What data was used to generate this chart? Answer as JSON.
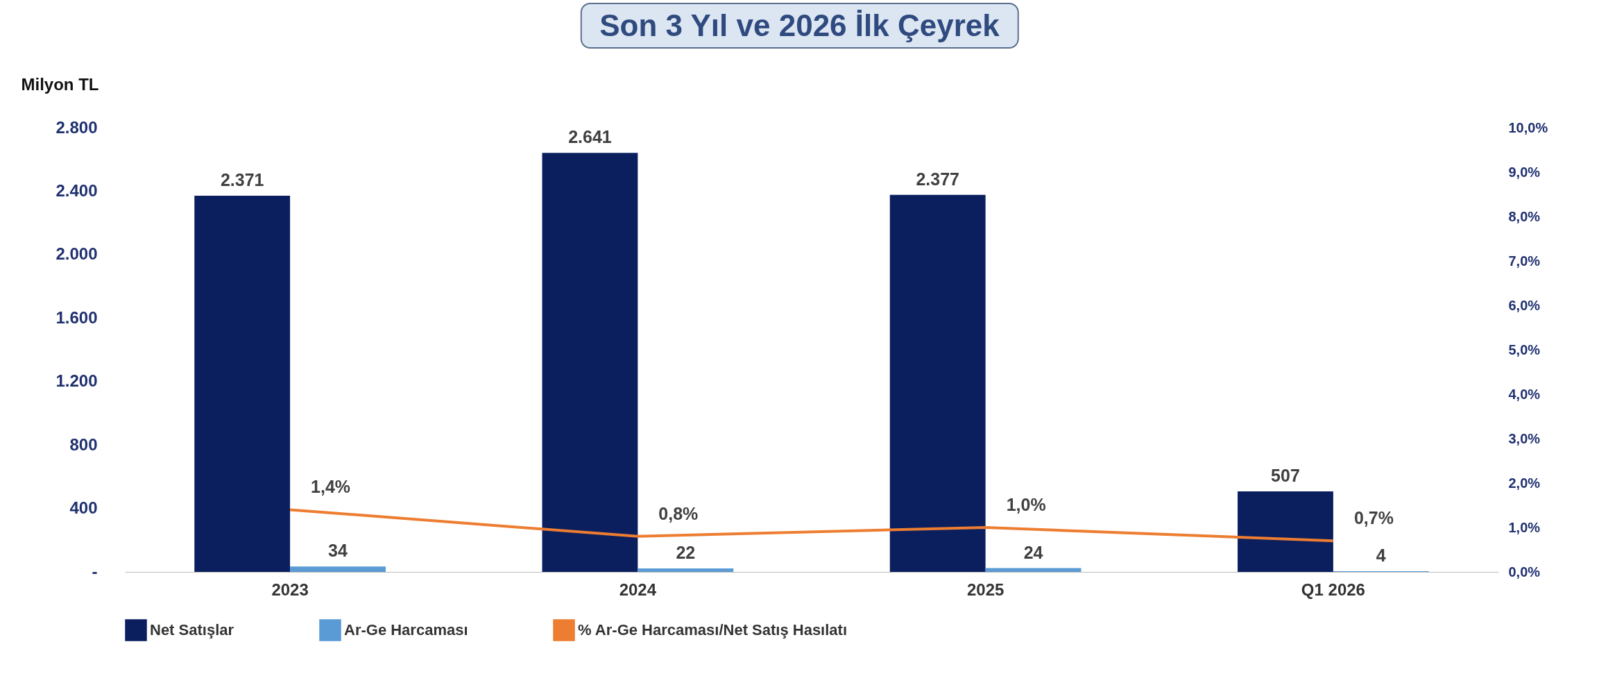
{
  "chart_data": {
    "type": "bar",
    "title": "Son 3 Yıl ve 2026 İlk Çeyrek",
    "ylabel": "Milyon TL",
    "categories": [
      "2023",
      "2024",
      "2025",
      "Q1 2026"
    ],
    "series": [
      {
        "name": "Net Satışlar",
        "color": "#0b1f5e",
        "values": [
          2371,
          2641,
          2377,
          507
        ],
        "value_labels": [
          "2.371",
          "2.641",
          "2.377",
          "507"
        ]
      },
      {
        "name": "Ar-Ge Harcaması",
        "color": "#5b9bd5",
        "values": [
          34,
          22,
          24,
          4
        ],
        "value_labels": [
          "34",
          "22",
          "24",
          "4"
        ]
      },
      {
        "name": "% Ar-Ge Harcaması/Net Satış Hasılatı",
        "type": "line",
        "axis": "y2",
        "color": "#ed7d31",
        "values": [
          1.4,
          0.8,
          1.0,
          0.7
        ],
        "value_labels": [
          "1,4%",
          "0,8%",
          "1,0%",
          "0,7%"
        ]
      }
    ],
    "ylim": [
      0,
      2800
    ],
    "yticks": [
      {
        "value": 0,
        "label": "-"
      },
      {
        "value": 400,
        "label": "400"
      },
      {
        "value": 800,
        "label": "800"
      },
      {
        "value": 1200,
        "label": "1.200"
      },
      {
        "value": 1600,
        "label": "1.600"
      },
      {
        "value": 2000,
        "label": "2.000"
      },
      {
        "value": 2400,
        "label": "2.400"
      },
      {
        "value": 2800,
        "label": "2.800"
      }
    ],
    "y2lim": [
      0,
      10
    ],
    "y2ticks": [
      {
        "value": 0,
        "label": "0,0%"
      },
      {
        "value": 1,
        "label": "1,0%"
      },
      {
        "value": 2,
        "label": "2,0%"
      },
      {
        "value": 3,
        "label": "3,0%"
      },
      {
        "value": 4,
        "label": "4,0%"
      },
      {
        "value": 5,
        "label": "5,0%"
      },
      {
        "value": 6,
        "label": "6,0%"
      },
      {
        "value": 7,
        "label": "7,0%"
      },
      {
        "value": 8,
        "label": "8,0%"
      },
      {
        "value": 9,
        "label": "9,0%"
      },
      {
        "value": 10,
        "label": "10,0%"
      }
    ],
    "grid": false,
    "legend": "bottom",
    "marker": "none",
    "line_style": "solid"
  }
}
